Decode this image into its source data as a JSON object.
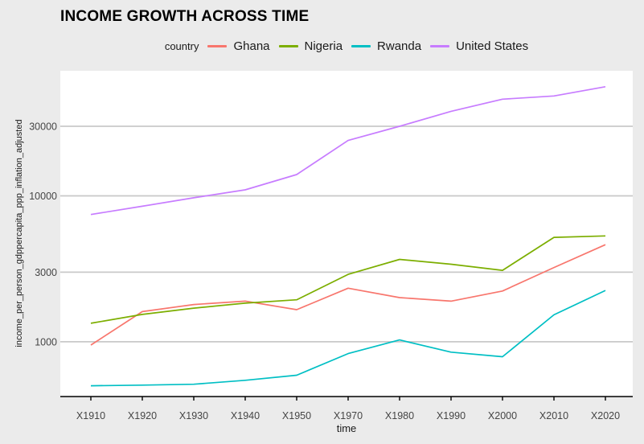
{
  "title": "INCOME GROWTH ACROSS TIME",
  "legend": {
    "title": "country"
  },
  "chart_data": {
    "type": "line",
    "title": "INCOME GROWTH ACROSS TIME",
    "xlabel": "time",
    "ylabel": "income_per_person_gdppercapita_ppp_inflation_adjusted",
    "x_scale": "categorical",
    "y_scale": "log10",
    "grid": "horizontal-major-only",
    "legend_position": "top-center",
    "outer_bg": "#EBEBEB",
    "panel_bg": "#FFFFFF",
    "grid_color": "#C9C9C9",
    "axis_color": "#000000",
    "tick_label_color": "#454545",
    "categories": [
      "X1910",
      "X1920",
      "X1930",
      "X1940",
      "X1950",
      "X1970",
      "X1980",
      "X1990",
      "X2000",
      "X2010",
      "X2020"
    ],
    "y_ticks": [
      1000,
      3000,
      10000,
      30000
    ],
    "ylim_log_range": [
      440,
      60000
    ],
    "series": [
      {
        "name": "Ghana",
        "color": "#F8766D",
        "values": [
          950,
          1610,
          1800,
          1900,
          1660,
          2330,
          2010,
          1900,
          2230,
          3230,
          4630
        ]
      },
      {
        "name": "Nigeria",
        "color": "#7CAE00",
        "values": [
          1340,
          1540,
          1700,
          1840,
          1940,
          2900,
          3670,
          3400,
          3090,
          5200,
          5320
        ]
      },
      {
        "name": "Rwanda",
        "color": "#00BFC4",
        "values": [
          500,
          505,
          512,
          545,
          590,
          830,
          1030,
          850,
          790,
          1530,
          2250
        ]
      },
      {
        "name": "United States",
        "color": "#C77CFF",
        "values": [
          7450,
          8500,
          9700,
          11000,
          14000,
          24000,
          30000,
          38000,
          46000,
          48400,
          56000
        ]
      }
    ]
  }
}
